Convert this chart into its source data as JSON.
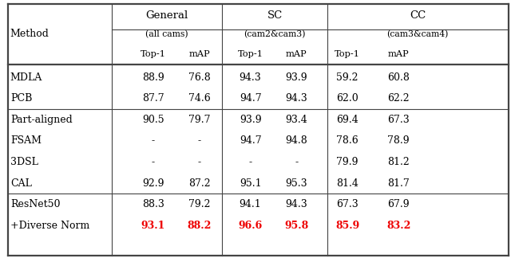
{
  "fig_w": 6.4,
  "fig_h": 3.24,
  "bg": "#ffffff",
  "red": "#ee0000",
  "black": "#000000",
  "gray": "#444444",
  "group_labels": [
    "General",
    "SC",
    "CC"
  ],
  "group_subs": [
    "(all cams)",
    "(cam2&cam3)",
    "(cam3&cam4)"
  ],
  "col_headers": [
    "Top-1",
    "mAP",
    "Top-1",
    "mAP",
    "Top-1",
    "mAP"
  ],
  "rows": [
    {
      "method": "MDLA",
      "sc": false,
      "vals": [
        "88.9",
        "76.8",
        "94.3",
        "93.9",
        "59.2",
        "60.8"
      ],
      "red": false,
      "bold": false,
      "sep_before": false
    },
    {
      "method": "PCB",
      "sc": false,
      "vals": [
        "87.7",
        "74.6",
        "94.7",
        "94.3",
        "62.0",
        "62.2"
      ],
      "red": false,
      "bold": false,
      "sep_before": false
    },
    {
      "method": "Part-aligned",
      "sc": true,
      "vals": [
        "90.5",
        "79.7",
        "93.9",
        "93.4",
        "69.4",
        "67.3"
      ],
      "red": false,
      "bold": false,
      "sep_before": true
    },
    {
      "method": "FSAM",
      "sc": false,
      "vals": [
        "-",
        "-",
        "94.7",
        "94.8",
        "78.6",
        "78.9"
      ],
      "red": false,
      "bold": false,
      "sep_before": false
    },
    {
      "method": "3DSL",
      "sc": false,
      "vals": [
        "-",
        "-",
        "-",
        "-",
        "79.9",
        "81.2"
      ],
      "red": false,
      "bold": false,
      "sep_before": false
    },
    {
      "method": "CAL",
      "sc": false,
      "vals": [
        "92.9",
        "87.2",
        "95.1",
        "95.3",
        "81.4",
        "81.7"
      ],
      "red": false,
      "bold": false,
      "sep_before": false
    },
    {
      "method": "ResNet50",
      "sc": true,
      "vals": [
        "88.3",
        "79.2",
        "94.1",
        "94.3",
        "67.3",
        "67.9"
      ],
      "red": false,
      "bold": false,
      "sep_before": true
    },
    {
      "method": "+Diverse Norm",
      "sc": true,
      "vals": [
        "93.1",
        "88.2",
        "96.6",
        "95.8",
        "85.9",
        "83.2"
      ],
      "red": true,
      "bold": true,
      "sep_before": false
    }
  ],
  "lw_thick": 1.6,
  "lw_thin": 0.8
}
